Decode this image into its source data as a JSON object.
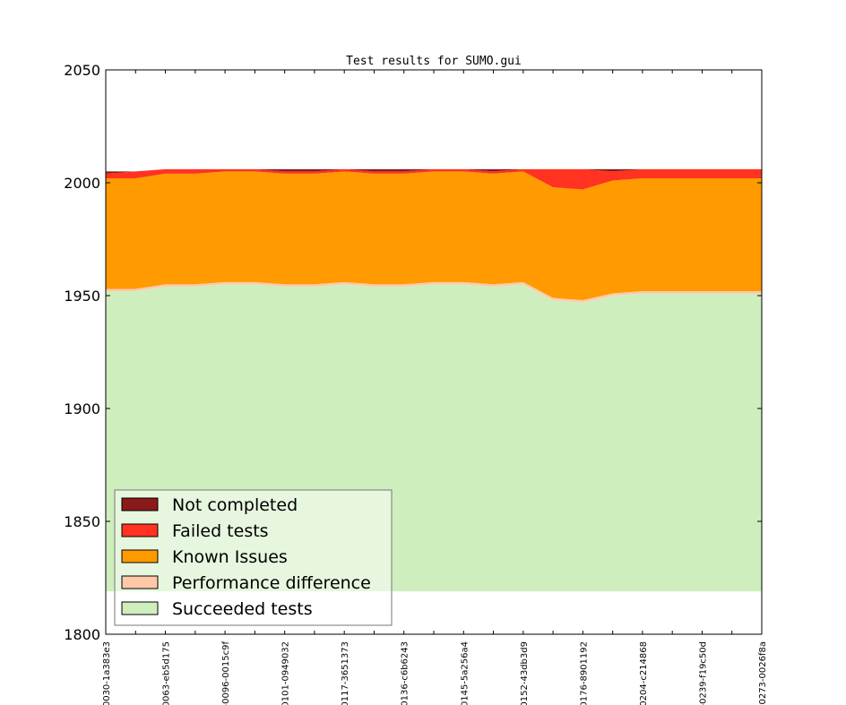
{
  "chart_data": {
    "type": "area",
    "title": "Test results for SUMO.gui",
    "xlabel": "",
    "ylabel": "",
    "ylim": [
      1800,
      2050
    ],
    "yticks": [
      1800,
      1850,
      1900,
      1950,
      2000,
      2050
    ],
    "grid": false,
    "legend_position": "lower-left",
    "fill_bottom": 1819,
    "x_tick_labels": [
      "0030-1a383e3",
      "0063-eb5d175",
      "-0096-0015c9f",
      "0101-0949032",
      "0117-3651373",
      "0136-c6b6243",
      "0145-5a256a4",
      "0152-43db3d9",
      "0176-8901192",
      "0204-c214868",
      "-0239-f19c50d",
      "-0273-0026f8a"
    ],
    "x_tick_index": [
      0,
      2,
      4,
      6,
      8,
      10,
      12,
      14,
      16,
      18,
      20,
      22
    ],
    "x_count": 23,
    "series": [
      {
        "name": "Succeeded tests",
        "color": "#cfeebe",
        "values": [
          1952,
          1952,
          1954,
          1954,
          1955,
          1955,
          1954,
          1954,
          1955,
          1954,
          1954,
          1955,
          1955,
          1954,
          1955,
          1948,
          1947,
          1950,
          1951,
          1951,
          1951,
          1951,
          1951
        ]
      },
      {
        "name": "Performance difference",
        "color": "#ffc8a8",
        "values": [
          1953,
          1953,
          1955,
          1955,
          1956,
          1956,
          1955,
          1955,
          1956,
          1955,
          1955,
          1956,
          1956,
          1955,
          1956,
          1949,
          1948,
          1951,
          1952,
          1952,
          1952,
          1952,
          1952
        ]
      },
      {
        "name": "Known Issues",
        "color": "#ff9a00",
        "values": [
          2002,
          2002,
          2004,
          2004,
          2005,
          2005,
          2004,
          2004,
          2005,
          2004,
          2004,
          2005,
          2005,
          2004,
          2005,
          1998,
          1997,
          2001,
          2002,
          2002,
          2002,
          2002,
          2002
        ]
      },
      {
        "name": "Failed tests",
        "color": "#ff3320",
        "values": [
          2004,
          2005,
          2006,
          2006,
          2006,
          2006,
          2005,
          2005,
          2006,
          2005,
          2005,
          2006,
          2006,
          2005,
          2006,
          2006,
          2006,
          2005,
          2006,
          2006,
          2006,
          2006,
          2006
        ]
      },
      {
        "name": "Not completed",
        "color": "#8b1a1a",
        "values": [
          2005,
          2005,
          2006,
          2006,
          2006,
          2006,
          2006,
          2006,
          2006,
          2006,
          2006,
          2006,
          2006,
          2006,
          2006,
          2006,
          2006,
          2006,
          2006,
          2006,
          2006,
          2006,
          2006
        ]
      }
    ],
    "legend_order": [
      "Not completed",
      "Failed tests",
      "Known Issues",
      "Performance difference",
      "Succeeded tests"
    ]
  }
}
